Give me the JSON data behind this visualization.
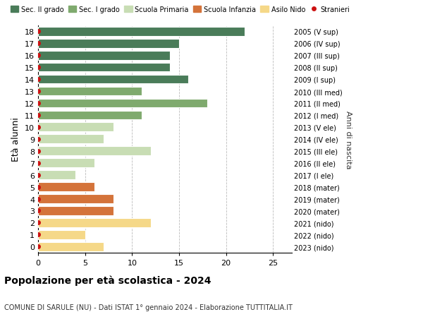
{
  "ages": [
    18,
    17,
    16,
    15,
    14,
    13,
    12,
    11,
    10,
    9,
    8,
    7,
    6,
    5,
    4,
    3,
    2,
    1,
    0
  ],
  "right_labels": [
    "2005 (V sup)",
    "2006 (IV sup)",
    "2007 (III sup)",
    "2008 (II sup)",
    "2009 (I sup)",
    "2010 (III med)",
    "2011 (II med)",
    "2012 (I med)",
    "2013 (V ele)",
    "2014 (IV ele)",
    "2015 (III ele)",
    "2016 (II ele)",
    "2017 (I ele)",
    "2018 (mater)",
    "2019 (mater)",
    "2020 (mater)",
    "2021 (nido)",
    "2022 (nido)",
    "2023 (nido)"
  ],
  "values": [
    22,
    15,
    14,
    14,
    16,
    11,
    18,
    11,
    8,
    7,
    12,
    6,
    4,
    6,
    8,
    8,
    12,
    5,
    7
  ],
  "categories": {
    "Sec. II grado": {
      "ages": [
        18,
        17,
        16,
        15,
        14
      ],
      "color": "#4a7c59"
    },
    "Sec. I grado": {
      "ages": [
        13,
        12,
        11
      ],
      "color": "#7faa6e"
    },
    "Scuola Primaria": {
      "ages": [
        10,
        9,
        8,
        7,
        6
      ],
      "color": "#c8ddb4"
    },
    "Scuola Infanzia": {
      "ages": [
        5,
        4,
        3
      ],
      "color": "#d4733a"
    },
    "Asilo Nido": {
      "ages": [
        2,
        1,
        0
      ],
      "color": "#f5d888"
    }
  },
  "stranieri_color": "#cc1111",
  "background_color": "#ffffff",
  "grid_color": "#bbbbbb",
  "bar_height": 0.75,
  "xlim": [
    0,
    27
  ],
  "xlabel_ticks": [
    0,
    5,
    10,
    15,
    20,
    25
  ],
  "ylabel": "Età alunni",
  "right_ylabel": "Anni di nascita",
  "title": "Popolazione per età scolastica - 2024",
  "subtitle": "COMUNE DI SARULE (NU) - Dati ISTAT 1° gennaio 2024 - Elaborazione TUTTITALIA.IT",
  "legend_order": [
    "Sec. II grado",
    "Sec. I grado",
    "Scuola Primaria",
    "Scuola Infanzia",
    "Asilo Nido",
    "Stranieri"
  ]
}
